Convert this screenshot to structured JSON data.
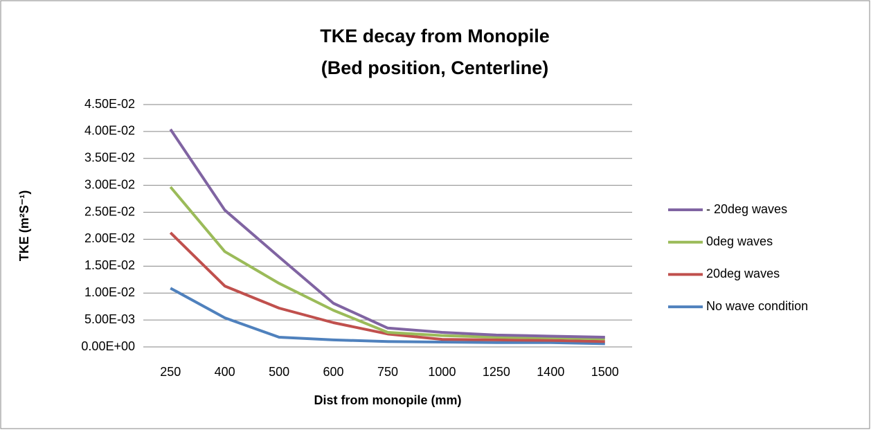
{
  "chart_data": {
    "type": "line",
    "title": "TKE decay from Monopile",
    "subtitle": "(Bed position, Centerline)",
    "x_label": "Dist from monopile (mm)",
    "y_label": "TKE (m²S⁻¹)",
    "categories": [
      "250",
      "400",
      "500",
      "600",
      "750",
      "1000",
      "1250",
      "1400",
      "1500"
    ],
    "series": [
      {
        "name": "- 20deg waves",
        "color": "#8064a2",
        "values": [
          0.0404,
          0.0254,
          0.0167,
          0.0081,
          0.0035,
          0.0027,
          0.0022,
          0.002,
          0.0018
        ]
      },
      {
        "name": "0deg waves",
        "color": "#9bbb59",
        "values": [
          0.0297,
          0.0177,
          0.0118,
          0.0068,
          0.0027,
          0.0021,
          0.0018,
          0.0017,
          0.0015
        ]
      },
      {
        "name": "20deg waves",
        "color": "#c0504d",
        "values": [
          0.0212,
          0.0113,
          0.0072,
          0.0045,
          0.0024,
          0.0014,
          0.0013,
          0.0012,
          0.001
        ]
      },
      {
        "name": "No wave condition",
        "color": "#4f81bd",
        "values": [
          0.0109,
          0.0054,
          0.0018,
          0.0013,
          0.001,
          0.0009,
          0.0008,
          0.0008,
          0.0006
        ]
      }
    ],
    "ylim": [
      0,
      0.045
    ],
    "yticks": [
      {
        "value": 0,
        "label": "0.00E+00"
      },
      {
        "value": 0.005,
        "label": "5.00E-03"
      },
      {
        "value": 0.01,
        "label": "1.00E-02"
      },
      {
        "value": 0.015,
        "label": "1.50E-02"
      },
      {
        "value": 0.02,
        "label": "2.00E-02"
      },
      {
        "value": 0.025,
        "label": "2.50E-02"
      },
      {
        "value": 0.03,
        "label": "3.00E-02"
      },
      {
        "value": 0.035,
        "label": "3.50E-02"
      },
      {
        "value": 0.04,
        "label": "4.00E-02"
      },
      {
        "value": 0.045,
        "label": "4.50E-02"
      }
    ],
    "grid": true,
    "legend": "right"
  }
}
